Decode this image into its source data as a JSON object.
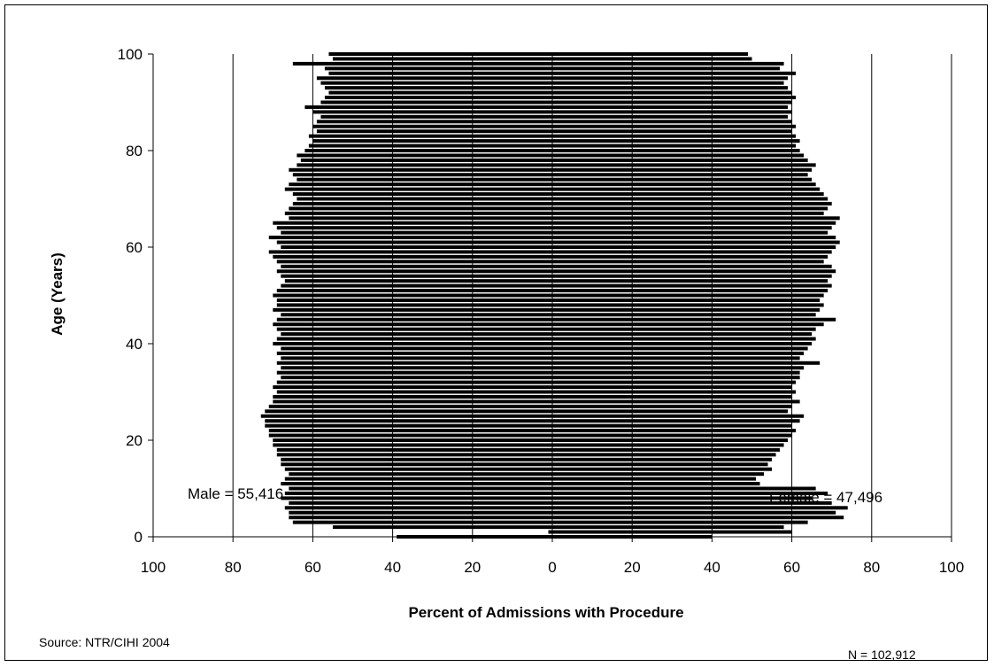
{
  "chart_data": {
    "type": "bar",
    "orientation": "horizontal-population-pyramid",
    "title": "",
    "xlabel": "Percent of Admissions with Procedure",
    "ylabel": "Age (Years)",
    "xlim": [
      -100,
      100
    ],
    "ylim": [
      0,
      100
    ],
    "x_ticks": [
      -100,
      -80,
      -60,
      -40,
      -20,
      0,
      20,
      40,
      60,
      80,
      100
    ],
    "x_tick_labels": [
      "100",
      "80",
      "60",
      "40",
      "20",
      "0",
      "20",
      "40",
      "60",
      "80",
      "100"
    ],
    "y_ticks": [
      0,
      20,
      40,
      60,
      80,
      100
    ],
    "y_tick_labels": [
      "0",
      "20",
      "40",
      "60",
      "80",
      "100"
    ],
    "vertical_grid": true,
    "vertical_grid_at": [
      -80,
      -60,
      -40,
      -20,
      0,
      20,
      40,
      60,
      80,
      100
    ],
    "age_step": 1,
    "ages": [
      0,
      1,
      2,
      3,
      4,
      5,
      6,
      7,
      8,
      9,
      10,
      11,
      12,
      13,
      14,
      15,
      16,
      17,
      18,
      19,
      20,
      21,
      22,
      23,
      24,
      25,
      26,
      27,
      28,
      29,
      30,
      31,
      32,
      33,
      34,
      35,
      36,
      37,
      38,
      39,
      40,
      41,
      42,
      43,
      44,
      45,
      46,
      47,
      48,
      49,
      50,
      51,
      52,
      53,
      54,
      55,
      56,
      57,
      58,
      59,
      60,
      61,
      62,
      63,
      64,
      65,
      66,
      67,
      68,
      69,
      70,
      71,
      72,
      73,
      74,
      75,
      76,
      77,
      78,
      79,
      80,
      81,
      82,
      83,
      84,
      85,
      86,
      87,
      88,
      89,
      90,
      91,
      92,
      93,
      94,
      95,
      96,
      97,
      98,
      99,
      100
    ],
    "series": [
      {
        "name": "Male",
        "side": "left",
        "values": [
          39,
          1,
          55,
          65,
          66,
          66,
          67,
          66,
          68,
          67,
          66,
          68,
          67,
          66,
          67,
          68,
          68,
          69,
          69,
          70,
          70,
          71,
          71,
          72,
          72,
          73,
          72,
          71,
          70,
          70,
          69,
          70,
          69,
          68,
          69,
          68,
          69,
          68,
          69,
          68,
          70,
          69,
          68,
          69,
          70,
          69,
          68,
          70,
          69,
          69,
          70,
          69,
          68,
          67,
          68,
          69,
          68,
          69,
          70,
          71,
          68,
          69,
          71,
          68,
          69,
          70,
          66,
          67,
          66,
          65,
          64,
          65,
          67,
          66,
          64,
          65,
          66,
          64,
          63,
          64,
          62,
          61,
          60,
          61,
          59,
          60,
          59,
          58,
          60,
          62,
          58,
          57,
          56,
          57,
          58,
          59,
          56,
          57,
          65,
          55,
          56
        ]
      },
      {
        "name": "Female",
        "side": "right",
        "values": [
          40,
          60,
          58,
          64,
          73,
          71,
          74,
          70,
          65,
          69,
          66,
          52,
          51,
          53,
          55,
          54,
          55,
          56,
          57,
          58,
          59,
          60,
          61,
          60,
          62,
          63,
          59,
          60,
          62,
          60,
          61,
          60,
          61,
          62,
          62,
          63,
          67,
          62,
          63,
          64,
          65,
          66,
          65,
          66,
          68,
          71,
          66,
          67,
          68,
          67,
          68,
          69,
          70,
          69,
          70,
          71,
          70,
          68,
          69,
          70,
          71,
          72,
          71,
          69,
          70,
          71,
          72,
          68,
          69,
          70,
          69,
          68,
          67,
          66,
          65,
          64,
          65,
          66,
          64,
          63,
          62,
          61,
          62,
          61,
          60,
          61,
          60,
          59,
          60,
          59,
          60,
          61,
          60,
          59,
          58,
          59,
          61,
          57,
          58,
          50,
          49
        ]
      }
    ],
    "annotations": {
      "male_total": "Male = 55,416",
      "female_total": "Female = 47,496",
      "source": "Source: NTR/CIHI 2004",
      "n_total": "N = 102,912"
    },
    "colors": {
      "bars": "#000000",
      "gridlines": "#000000",
      "background": "#ffffff"
    }
  }
}
